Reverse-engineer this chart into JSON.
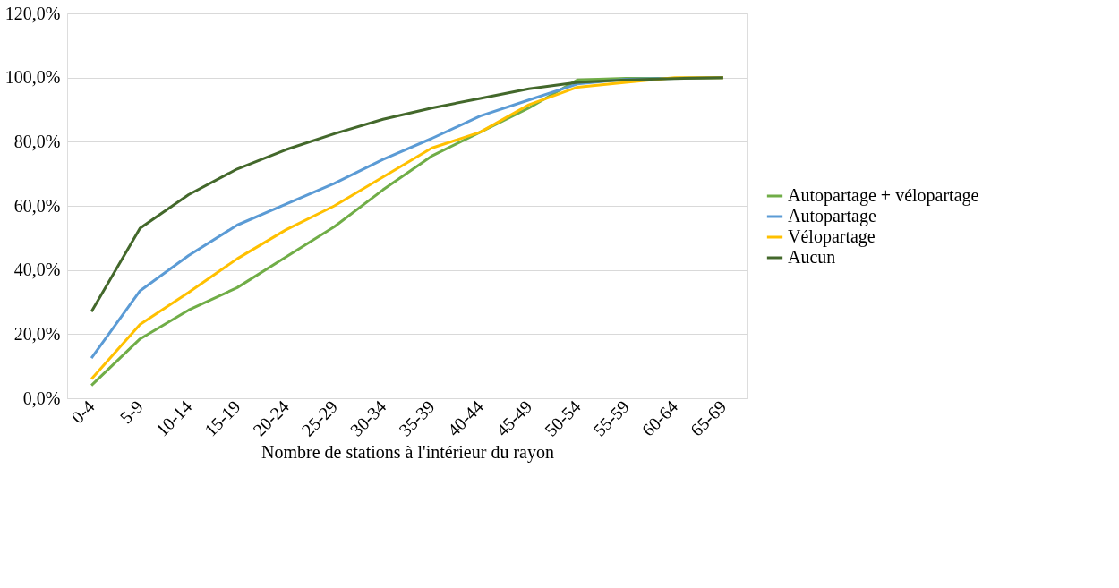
{
  "chart_data": {
    "type": "line",
    "xlabel": "Nombre de stations à l'intérieur du rayon",
    "categories": [
      "0-4",
      "5-9",
      "10-14",
      "15-19",
      "20-24",
      "25-29",
      "30-34",
      "35-39",
      "40-44",
      "45-49",
      "50-54",
      "55-59",
      "60-64",
      "65-69"
    ],
    "ylim": [
      0,
      120
    ],
    "yticks": [
      {
        "value": 0,
        "label": "0,0%"
      },
      {
        "value": 20,
        "label": "20,0%"
      },
      {
        "value": 40,
        "label": "40,0%"
      },
      {
        "value": 60,
        "label": "60,0%"
      },
      {
        "value": 80,
        "label": "80,0%"
      },
      {
        "value": 100,
        "label": "100,0%"
      },
      {
        "value": 120,
        "label": "120,0%"
      }
    ],
    "grid": "y",
    "legend": "right",
    "marker": "none",
    "line_style": "solid",
    "series": [
      {
        "name": "Autopartage + vélopartage",
        "color": "#70ad47",
        "values": [
          4,
          18.5,
          27.5,
          34.5,
          44,
          53.5,
          65,
          75.5,
          83,
          90.5,
          99.3,
          99.8,
          99.8,
          100
        ]
      },
      {
        "name": "Autopartage",
        "color": "#5b9bd5",
        "values": [
          12.5,
          33.5,
          44.5,
          54,
          60.5,
          67,
          74.5,
          81,
          88,
          93,
          98,
          99.5,
          99.8,
          100
        ]
      },
      {
        "name": "Vélopartage",
        "color": "#ffc000",
        "values": [
          6,
          23,
          33,
          43.5,
          52.5,
          60,
          69,
          78,
          83,
          91.5,
          97,
          98.5,
          100,
          100
        ]
      },
      {
        "name": "Aucun",
        "color": "#43682b",
        "values": [
          27,
          53,
          63.5,
          71.5,
          77.5,
          82.5,
          87,
          90.5,
          93.5,
          96.5,
          98.5,
          99.3,
          99.7,
          100
        ]
      }
    ]
  }
}
